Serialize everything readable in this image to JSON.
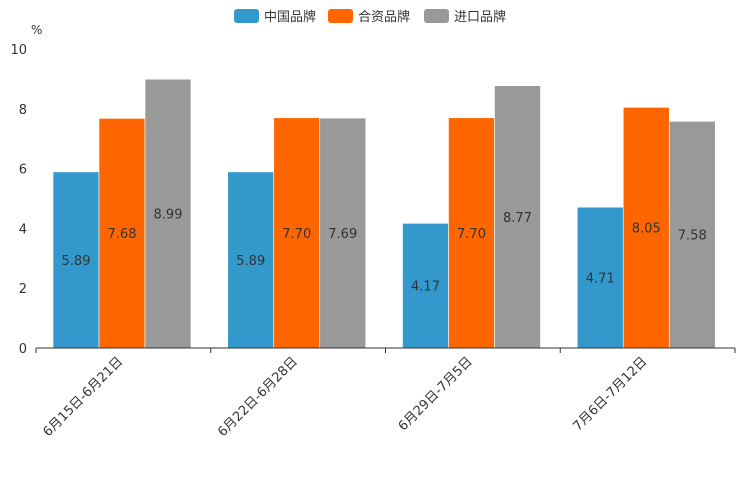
{
  "chart_data": {
    "type": "bar",
    "ylabel": "%",
    "ylim": [
      0,
      10
    ],
    "yticks": [
      0,
      2,
      4,
      6,
      8,
      10
    ],
    "categories": [
      "6月15日-6月21日",
      "6月22日-6月28日",
      "6月29日-7月5日",
      "7月6日-7月12日"
    ],
    "series": [
      {
        "name": "中国品牌",
        "color": "#3399cc",
        "values": [
          5.89,
          5.89,
          4.17,
          4.71
        ],
        "labels": [
          "5.89",
          "5.89",
          "4.17",
          "4.71"
        ]
      },
      {
        "name": "合资品牌",
        "color": "#ff6600",
        "values": [
          7.68,
          7.7,
          7.7,
          8.05
        ],
        "labels": [
          "7.68",
          "7.70",
          "7.70",
          "8.05"
        ]
      },
      {
        "name": "进口品牌",
        "color": "#999999",
        "values": [
          8.99,
          7.69,
          8.77,
          7.58
        ],
        "labels": [
          "8.99",
          "7.69",
          "8.77",
          "7.58"
        ]
      }
    ],
    "legend_position": "top-center"
  }
}
